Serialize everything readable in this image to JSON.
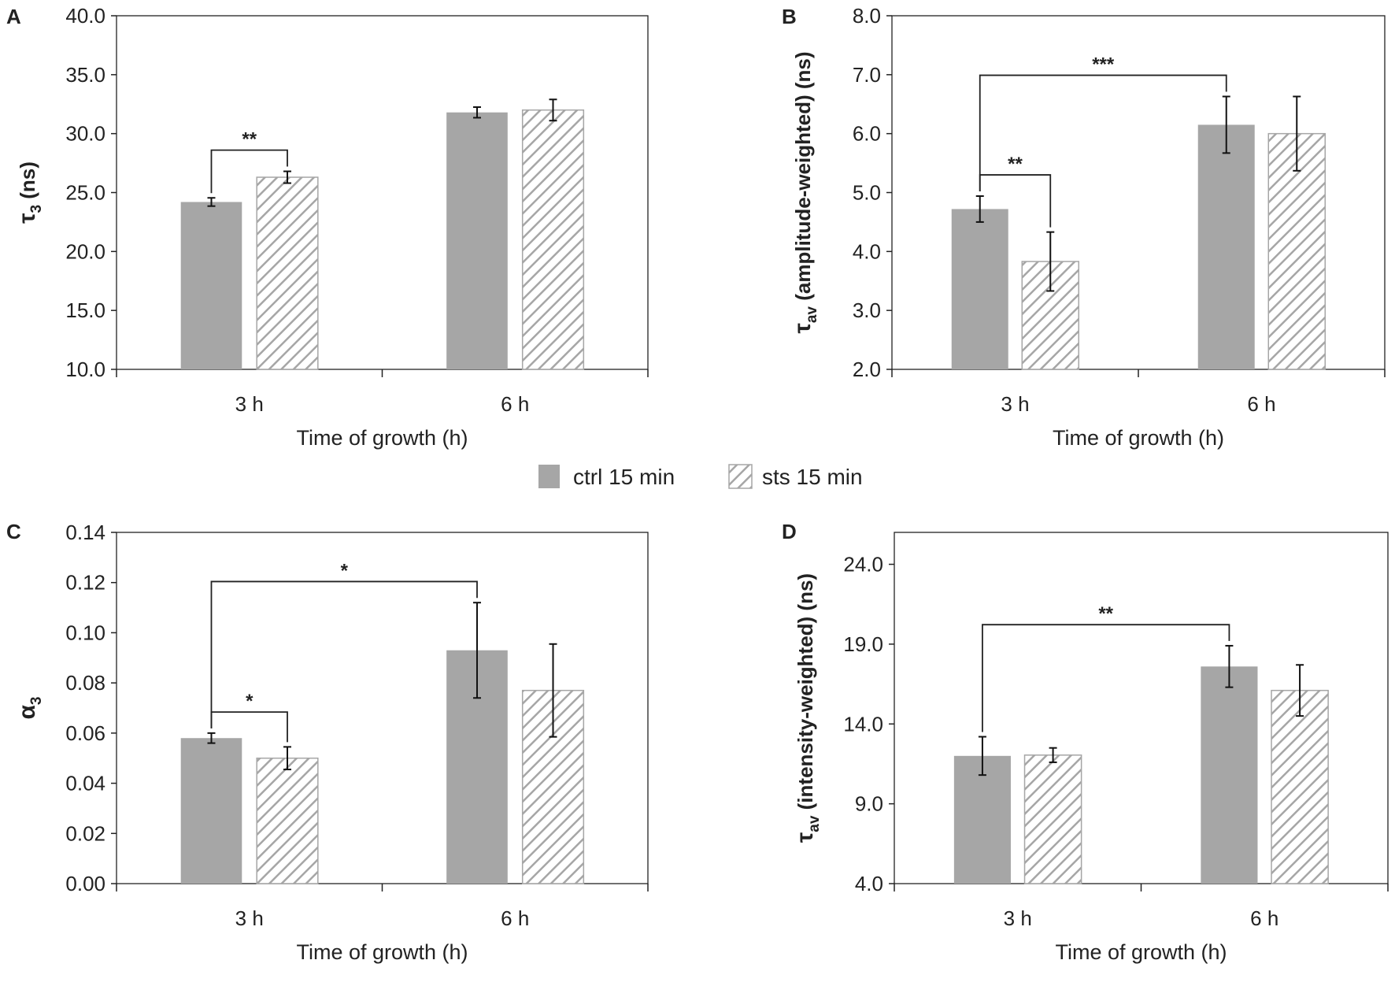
{
  "legend": {
    "items": [
      {
        "label": "ctrl 15 min",
        "style": "solid",
        "color": "#a6a6a6"
      },
      {
        "label": "sts 15 min",
        "style": "hatched",
        "color": "#a6a6a6"
      }
    ]
  },
  "chart_data": [
    {
      "panel": "A",
      "type": "bar",
      "categories": [
        "3 h",
        "6 h"
      ],
      "xlabel": "Time of growth (h)",
      "ylabel_main": "τ",
      "ylabel_sub": "3",
      "ylabel_rest": " (ns)",
      "ylim": [
        10,
        40
      ],
      "yticks": [
        "10.0",
        "15.0",
        "20.0",
        "25.0",
        "30.0",
        "35.0",
        "40.0"
      ],
      "ytick_values": [
        10,
        15,
        20,
        25,
        30,
        35,
        40
      ],
      "series": [
        {
          "name": "ctrl 15 min",
          "values": [
            24.2,
            31.8
          ],
          "errors": [
            0.35,
            0.45
          ]
        },
        {
          "name": "sts 15 min",
          "values": [
            26.3,
            32.0
          ],
          "errors": [
            0.5,
            0.9
          ]
        }
      ],
      "significance": [
        {
          "from": [
            0,
            0
          ],
          "to": [
            0,
            1
          ],
          "label": "**"
        }
      ]
    },
    {
      "panel": "B",
      "type": "bar",
      "categories": [
        "3 h",
        "6 h"
      ],
      "xlabel": "Time of growth (h)",
      "ylabel_main": "τ",
      "ylabel_sub": "av",
      "ylabel_rest": " (amplitude-weighted) (ns)",
      "ylim": [
        2,
        8
      ],
      "yticks": [
        "2.0",
        "3.0",
        "4.0",
        "5.0",
        "6.0",
        "7.0",
        "8.0"
      ],
      "ytick_values": [
        2,
        3,
        4,
        5,
        6,
        7,
        8
      ],
      "series": [
        {
          "name": "ctrl 15 min",
          "values": [
            4.72,
            6.15
          ],
          "errors": [
            0.22,
            0.48
          ]
        },
        {
          "name": "sts 15 min",
          "values": [
            3.83,
            6.0
          ],
          "errors": [
            0.5,
            0.63
          ]
        }
      ],
      "significance": [
        {
          "from": [
            0,
            0
          ],
          "to": [
            1,
            0
          ],
          "label": "***"
        },
        {
          "from": [
            0,
            0
          ],
          "to": [
            0,
            1
          ],
          "label": "**"
        }
      ]
    },
    {
      "panel": "C",
      "type": "bar",
      "categories": [
        "3 h",
        "6 h"
      ],
      "xlabel": "Time of growth (h)",
      "ylabel_main": "α",
      "ylabel_sub": "3",
      "ylabel_rest": "",
      "ylim": [
        0,
        0.14
      ],
      "yticks": [
        "0.00",
        "0.02",
        "0.04",
        "0.06",
        "0.08",
        "0.10",
        "0.12",
        "0.14"
      ],
      "ytick_values": [
        0,
        0.02,
        0.04,
        0.06,
        0.08,
        0.1,
        0.12,
        0.14
      ],
      "series": [
        {
          "name": "ctrl 15 min",
          "values": [
            0.058,
            0.093
          ],
          "errors": [
            0.002,
            0.019
          ]
        },
        {
          "name": "sts 15 min",
          "values": [
            0.05,
            0.077
          ],
          "errors": [
            0.0045,
            0.0185
          ]
        }
      ],
      "significance": [
        {
          "from": [
            0,
            0
          ],
          "to": [
            1,
            0
          ],
          "label": "*"
        },
        {
          "from": [
            0,
            0
          ],
          "to": [
            0,
            1
          ],
          "label": "*"
        }
      ]
    },
    {
      "panel": "D",
      "type": "bar",
      "categories": [
        "3 h",
        "6 h"
      ],
      "xlabel": "Time of growth (h)",
      "ylabel_main": "τ",
      "ylabel_sub": "av",
      "ylabel_rest": " (intensity-weighted) (ns)",
      "ylim": [
        4,
        26
      ],
      "yticks": [
        "4.0",
        "9.0",
        "14.0",
        "19.0",
        "24.0"
      ],
      "ytick_values": [
        4,
        9,
        14,
        19,
        24
      ],
      "series": [
        {
          "name": "ctrl 15 min",
          "values": [
            12.0,
            17.6
          ],
          "errors": [
            1.2,
            1.3
          ]
        },
        {
          "name": "sts 15 min",
          "values": [
            12.05,
            16.1
          ],
          "errors": [
            0.45,
            1.6
          ]
        }
      ],
      "significance": [
        {
          "from": [
            0,
            0
          ],
          "to": [
            1,
            0
          ],
          "label": "**"
        }
      ]
    }
  ]
}
